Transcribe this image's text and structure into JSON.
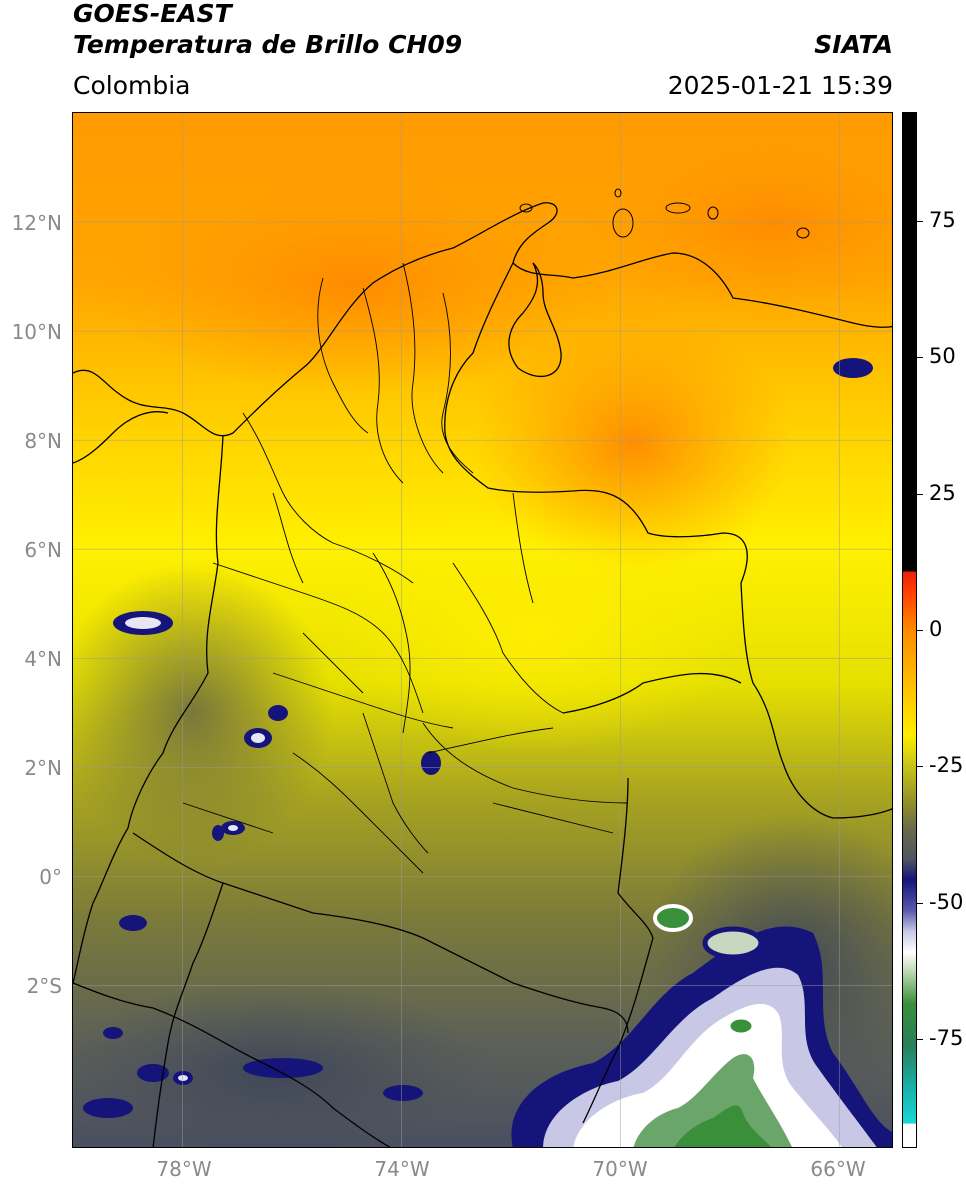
{
  "header": {
    "title_line1": "GOES-EAST",
    "title_line2": "Temperatura de Brillo CH09",
    "agency": "SIATA",
    "region": "Colombia",
    "datetime": "2025-01-21 15:39"
  },
  "map": {
    "latitude_labels": [
      "12°N",
      "10°N",
      "8°N",
      "6°N",
      "4°N",
      "2°N",
      "0°",
      "2°S"
    ],
    "longitude_labels": [
      "78°W",
      "74°W",
      "70°W",
      "66°W"
    ],
    "extent": {
      "lon_min": -80,
      "lon_max": -65,
      "lat_min": -5,
      "lat_max": 14
    },
    "gridlines": true
  },
  "colorbar": {
    "tick_labels": [
      "75",
      "50",
      "25",
      "0",
      "-25",
      "-50",
      "-75"
    ],
    "tick_values": [
      75,
      50,
      25,
      0,
      -25,
      -50,
      -75
    ],
    "range": [
      -95,
      95
    ],
    "colors": {
      "black_band": "#000000",
      "red": "#e8220c",
      "orange": "#ff8c00",
      "yellow": "#ffee00",
      "olive": "#8a8a2a",
      "gray": "#5a5f5a",
      "navy": "#14147a",
      "white": "#ffffff",
      "green": "#3a8f3a",
      "cyan": "#18d0cc"
    }
  }
}
